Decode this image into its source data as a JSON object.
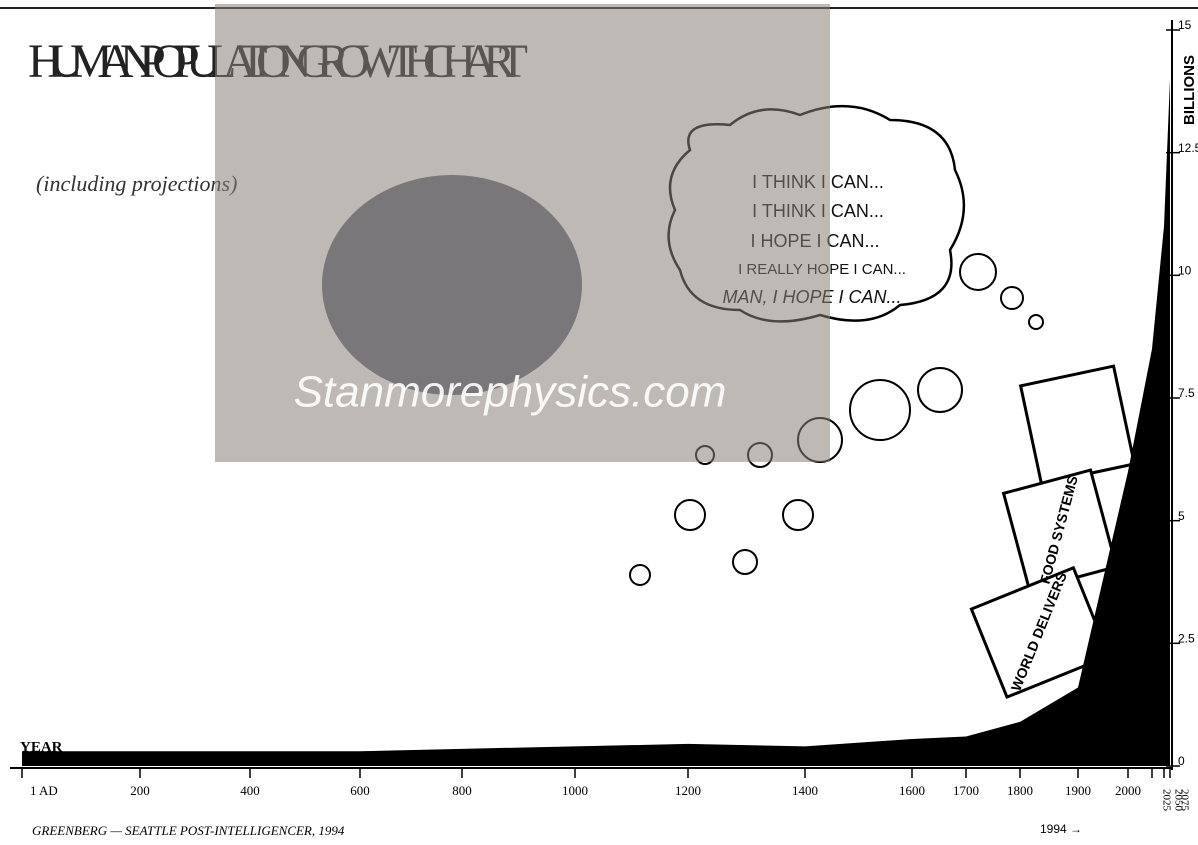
{
  "chart_data": {
    "type": "area",
    "title": "HUMAN POPULATION GROWTH CHART",
    "subtitle": "(including projections)",
    "x_label": "YEAR",
    "y_label": "BILLIONS",
    "categories": [
      "1 AD",
      "200",
      "400",
      "600",
      "800",
      "1000",
      "1200",
      "1400",
      "1600",
      "1700",
      "1800",
      "1900",
      "2000",
      "2025",
      "2050",
      "2075"
    ],
    "values": [
      0.3,
      0.3,
      0.3,
      0.3,
      0.35,
      0.4,
      0.45,
      0.4,
      0.55,
      0.6,
      0.9,
      1.6,
      6,
      8.5,
      11,
      14
    ],
    "color": "#000000",
    "ylim": [
      0,
      15
    ],
    "yticks": [
      0,
      2.5,
      5,
      7.5,
      10,
      12.5,
      15
    ],
    "annotations": {
      "bubble": [
        "I THINK I CAN...",
        "I THINK I CAN...",
        "I HOPE I CAN...",
        "I REALLY HOPE I CAN...",
        "MAN, I HOPE I CAN..."
      ],
      "train": [
        "FOOD SYSTEMS",
        "WORLD DELIVERS"
      ],
      "marker": "1994 →",
      "credit": "GREENBERG — SEATTLE POST-INTELLIGENCER, 1994",
      "watermark": "Stanmorephysics.com"
    }
  }
}
